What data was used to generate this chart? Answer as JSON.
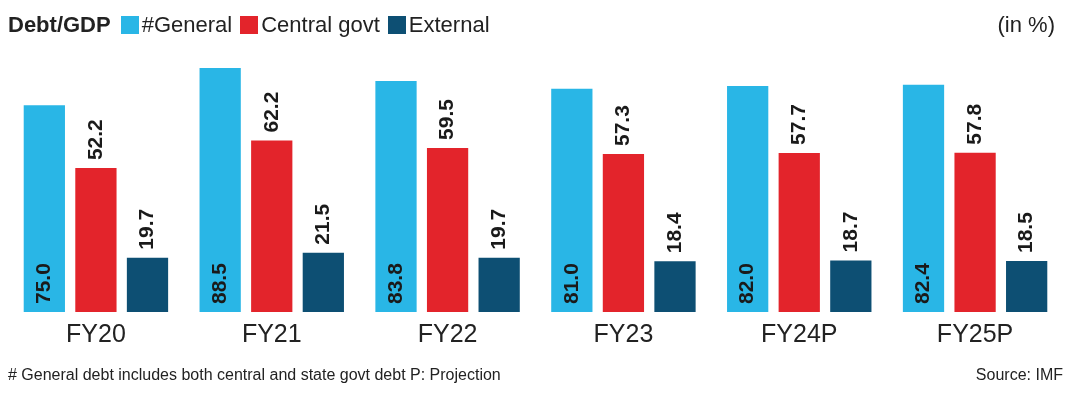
{
  "chart_data": {
    "type": "bar",
    "title": "Debt/GDP",
    "ylabel": "(in %)",
    "categories": [
      "FY20",
      "FY21",
      "FY22",
      "FY23",
      "FY24P",
      "FY25P"
    ],
    "series": [
      {
        "name": "#General",
        "color": "#29b6e6",
        "values": [
          75.0,
          88.5,
          83.8,
          81.0,
          82.0,
          82.4
        ],
        "value_labels": [
          "75.0",
          "88.5",
          "83.8",
          "81.0",
          "82.0",
          "82.4"
        ]
      },
      {
        "name": "Central govt",
        "color": "#e3242b",
        "values": [
          52.2,
          62.2,
          59.5,
          57.3,
          57.7,
          57.8
        ],
        "value_labels": [
          "52.2",
          "62.2",
          "59.5",
          "57.3",
          "57.7",
          "57.8"
        ]
      },
      {
        "name": "External",
        "color": "#0d4f73",
        "values": [
          19.7,
          21.5,
          19.7,
          18.4,
          18.7,
          18.5
        ],
        "value_labels": [
          "19.7",
          "21.5",
          "19.7",
          "18.4",
          "18.7",
          "18.5"
        ]
      }
    ],
    "ylim": [
      0,
      88.5
    ],
    "tick_labels": "x",
    "grid": false,
    "legend": "top",
    "annotations": [
      "# General debt includes both central and state govt debt  P: Projection",
      "Source: IMF"
    ]
  }
}
